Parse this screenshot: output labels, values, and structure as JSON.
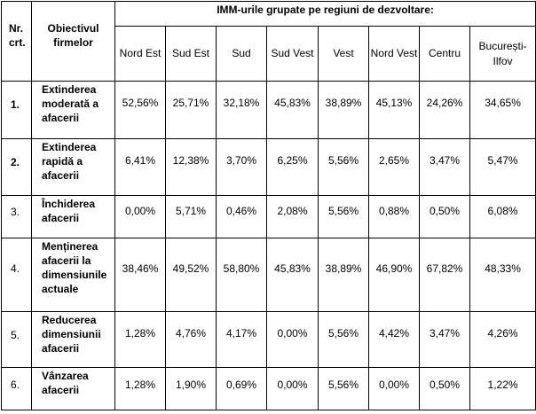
{
  "header": {
    "nr": "Nr. crt.",
    "objective": "Obiectivul firmelor",
    "group": "IMM-urile grupate pe regiuni de dezvoltare:",
    "regions": [
      "Nord Est",
      "Sud Est",
      "Sud",
      "Sud Vest",
      "Vest",
      "Nord Vest",
      "Centru",
      "București-Ilfov"
    ]
  },
  "rows": [
    {
      "nr": "1.",
      "objective": "Extinderea moderată a afacerii",
      "values": [
        "52,56%",
        "25,71%",
        "32,18%",
        "45,83%",
        "38,89%",
        "45,13%",
        "24,26%",
        "34,65%"
      ]
    },
    {
      "nr": "2.",
      "objective": "Extinderea rapidă a afacerii",
      "values": [
        "6,41%",
        "12,38%",
        "3,70%",
        "6,25%",
        "5,56%",
        "2,65%",
        "3,47%",
        "5,47%"
      ]
    },
    {
      "nr": "3.",
      "objective": "Închiderea afacerii",
      "values": [
        "0,00%",
        "5,71%",
        "0,46%",
        "2,08%",
        "5,56%",
        "0,88%",
        "0,50%",
        "6,08%"
      ]
    },
    {
      "nr": "4.",
      "objective": "Menținerea afacerii la dimensiunile actuale",
      "values": [
        "38,46%",
        "49,52%",
        "58,80%",
        "45,83%",
        "38,89%",
        "46,90%",
        "67,82%",
        "48,33%"
      ]
    },
    {
      "nr": "5.",
      "objective": "Reducerea dimensiunii afacerii",
      "values": [
        "1,28%",
        "4,76%",
        "4,17%",
        "0,00%",
        "5,56%",
        "4,42%",
        "3,47%",
        "4,26%"
      ]
    },
    {
      "nr": "6.",
      "objective": "Vânzarea afacerii",
      "values": [
        "1,28%",
        "1,90%",
        "0,69%",
        "0,00%",
        "5,56%",
        "0,00%",
        "0,50%",
        "1,22%"
      ]
    }
  ]
}
